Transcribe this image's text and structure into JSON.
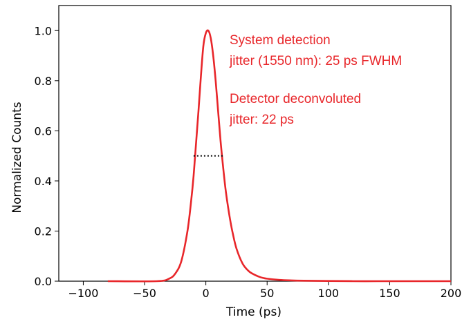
{
  "chart_data": {
    "type": "line",
    "title": "",
    "xlabel": "Time (ps)",
    "ylabel": "Normalized Counts",
    "xlim": [
      -120,
      200
    ],
    "ylim": [
      0,
      1.1
    ],
    "xticks": [
      -100,
      -50,
      0,
      50,
      100,
      150,
      200
    ],
    "yticks": [
      0.0,
      0.2,
      0.4,
      0.6,
      0.8,
      1.0
    ],
    "xtick_labels": [
      "−100",
      "−50",
      "0",
      "50",
      "100",
      "150",
      "200"
    ],
    "ytick_labels": [
      "0.0",
      "0.2",
      "0.4",
      "0.6",
      "0.8",
      "1.0"
    ],
    "grid": false,
    "series": [
      {
        "color": "#e8262a",
        "x": [
          -80,
          -40,
          -30,
          -25,
          -20,
          -15,
          -12,
          -10,
          -8,
          -6,
          -4,
          -2,
          0,
          2,
          4,
          6,
          8,
          10,
          12,
          14,
          16,
          18,
          20,
          22,
          25,
          30,
          35,
          40,
          45,
          50,
          60,
          70,
          80,
          100,
          120,
          140,
          160,
          200
        ],
        "y": [
          0.0,
          0.0,
          0.01,
          0.03,
          0.08,
          0.2,
          0.32,
          0.42,
          0.55,
          0.68,
          0.82,
          0.94,
          0.99,
          1.0,
          0.97,
          0.9,
          0.8,
          0.68,
          0.56,
          0.46,
          0.37,
          0.3,
          0.24,
          0.19,
          0.13,
          0.07,
          0.04,
          0.025,
          0.015,
          0.01,
          0.005,
          0.003,
          0.002,
          0.001,
          0.0,
          0.0,
          0.0,
          0.0
        ]
      }
    ],
    "fwhm_marker": {
      "x": [
        -10,
        15
      ],
      "y": 0.5,
      "color": "#000000"
    },
    "annotations": [
      {
        "lines": [
          "System detection",
          "jitter (1550 nm): 25 ps FWHM"
        ],
        "color": "#e8262a"
      },
      {
        "lines": [
          "Detector deconvoluted",
          "jitter: 22 ps"
        ],
        "color": "#e8262a"
      }
    ]
  }
}
